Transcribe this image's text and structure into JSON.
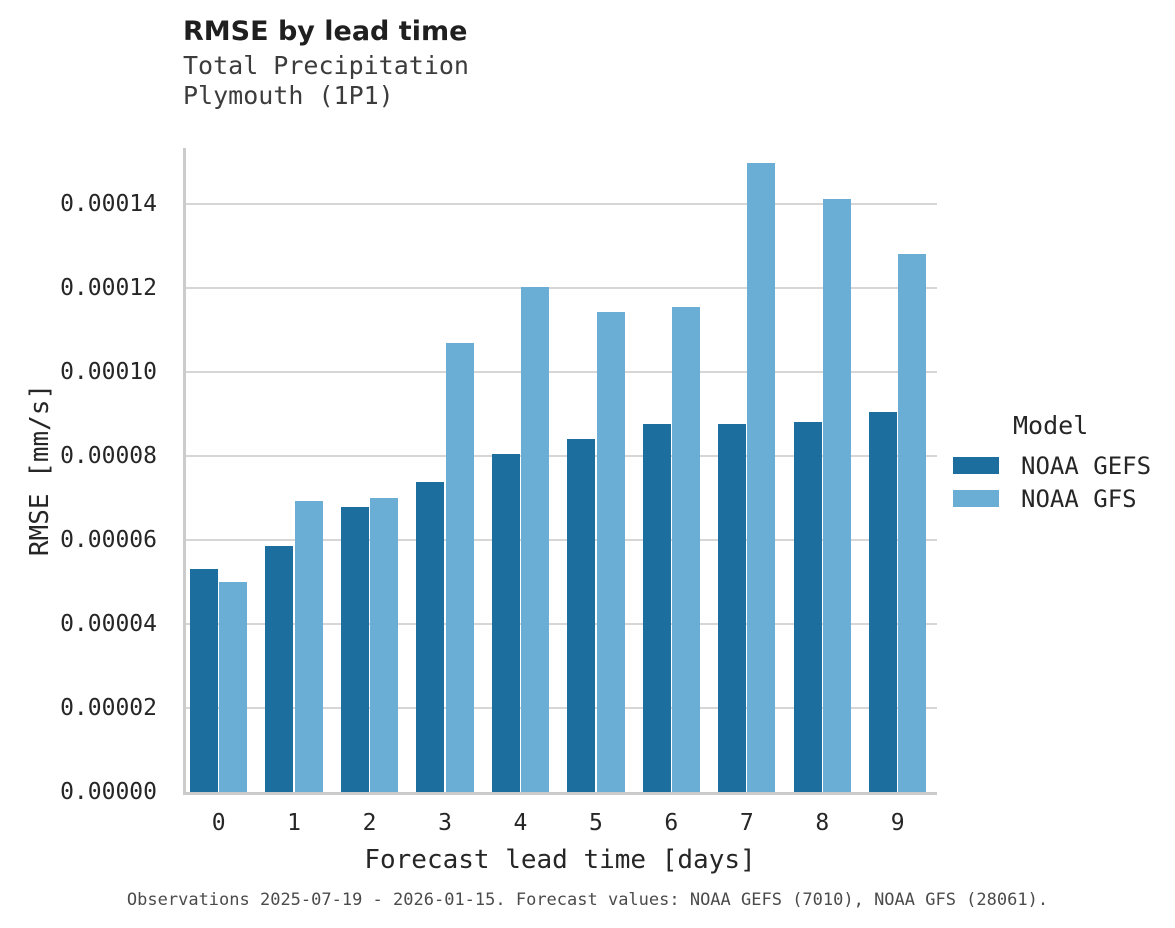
{
  "chart_data": {
    "type": "bar",
    "title": "RMSE by lead time",
    "subtitle": [
      "Total Precipitation",
      "Plymouth (1P1)"
    ],
    "xlabel": "Forecast lead time [days]",
    "ylabel": "RMSE [mm/s]",
    "categories": [
      "0",
      "1",
      "2",
      "3",
      "4",
      "5",
      "6",
      "7",
      "8",
      "9"
    ],
    "series": [
      {
        "name": "NOAA GEFS",
        "color": "#1c6e9e",
        "values": [
          5.3e-05,
          5.85e-05,
          6.78e-05,
          7.37e-05,
          8.05e-05,
          8.4e-05,
          8.77e-05,
          8.77e-05,
          8.82e-05,
          9.05e-05
        ]
      },
      {
        "name": "NOAA GFS",
        "color": "#6aaed6",
        "values": [
          5e-05,
          6.93e-05,
          7e-05,
          0.0001068,
          0.0001203,
          0.0001143,
          0.0001155,
          0.0001497,
          0.0001412,
          0.0001282
        ]
      }
    ],
    "ylim": [
      0,
      0.00015333
    ],
    "yticks": [
      0.0,
      2e-05,
      4e-05,
      6e-05,
      8e-05,
      0.0001,
      0.00012,
      0.00014
    ],
    "ytick_decimals": 5,
    "grid": "horizontal",
    "legend": {
      "title": "Model",
      "position": "right"
    }
  },
  "footer": {
    "note": "Observations 2025-07-19 - 2026-01-15. Forecast values: NOAA GEFS (7010), NOAA GFS (28061)."
  },
  "colors": {
    "gefs_bar": "#1c6e9e",
    "gfs_bar": "#6aaed6",
    "gridline": "#d6d6d6",
    "axis_line": "#cbcbcb",
    "title_text": "#1f1f1f",
    "tick_text": "#262626",
    "footer_text": "#4b4b4b"
  }
}
